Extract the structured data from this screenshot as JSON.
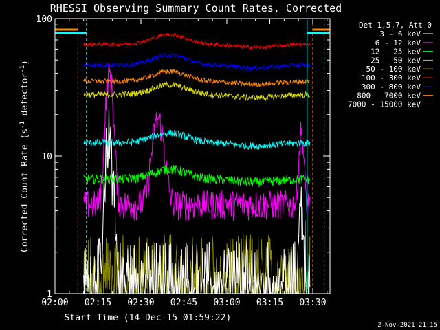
{
  "chart_data": {
    "type": "line",
    "title": "RHESSI Observing Summary Count Rates, Corrected",
    "xlabel": "Start Time (14-Dec-15 01:59:22)",
    "ylabel_main": "Corrected Count Rate (s",
    "ylabel_sup1": "-1",
    "ylabel_mid": " detector",
    "ylabel_sup2": "-1",
    "ylabel_end": ")",
    "y_scale": "log",
    "ylim": [
      1,
      100
    ],
    "xlim_minutes": [
      0,
      96
    ],
    "x_ticks": [
      {
        "label": "02:00",
        "t": 0
      },
      {
        "label": "02:15",
        "t": 15
      },
      {
        "label": "02:30",
        "t": 30
      },
      {
        "label": "02:45",
        "t": 45
      },
      {
        "label": "03:00",
        "t": 60
      },
      {
        "label": "03:15",
        "t": 75
      },
      {
        "label": "03:30",
        "t": 90
      }
    ],
    "y_ticks": [
      {
        "label": "1",
        "v": 1
      },
      {
        "label": "10",
        "v": 10
      },
      {
        "label": "100",
        "v": 100
      }
    ],
    "legend_header": "Det 1,5,7, Att 0",
    "legend_position": "right",
    "series": [
      {
        "name": "3 - 6 keV",
        "color": "#ffffff",
        "baseline": 1.6,
        "noise": 0.5,
        "peak": 15
      },
      {
        "name": "6 - 12 keV",
        "color": "#ff00ff",
        "baseline": 4.5,
        "noise": 0.25,
        "peak": 35
      },
      {
        "name": "12 - 25 keV",
        "color": "#00ff00",
        "baseline": 6.8,
        "noise": 0.08
      },
      {
        "name": "25 - 50 keV",
        "color": "#00ffff",
        "baseline": 12.5,
        "noise": 0.06
      },
      {
        "name": "50 - 100 keV",
        "color": "#dddd00",
        "baseline": 28,
        "noise": 0.05
      },
      {
        "name": "100 - 300 keV",
        "color": "#ff0000",
        "baseline": 65,
        "noise": 0.03
      },
      {
        "name": "300 - 800 keV",
        "color": "#0000ff",
        "baseline": 46,
        "noise": 0.04
      },
      {
        "name": "800 - 7000 keV",
        "color": "#ff8800",
        "baseline": 35,
        "noise": 0.04
      },
      {
        "name": "7000 - 15000 keV",
        "color": "#888800",
        "baseline": 1.7,
        "noise": 0.6
      }
    ],
    "data_start_minute": 10,
    "data_end_minute": 89,
    "night_boundaries_minutes": [
      8,
      11,
      88,
      90,
      94
    ],
    "footer_date": "2-Nov-2021 21:15"
  }
}
